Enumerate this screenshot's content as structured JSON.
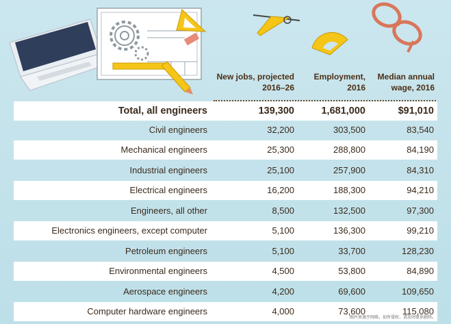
{
  "columns": {
    "new_jobs": {
      "line1": "New jobs, projected",
      "line2": "2016–26"
    },
    "employment": {
      "line1": "Employment,",
      "line2": "2016"
    },
    "wage": {
      "line1": "Median annual",
      "line2": "wage, 2016"
    }
  },
  "total": {
    "label": "Total, all engineers",
    "new_jobs": "139,300",
    "employment": "1,681,000",
    "wage": "$91,010"
  },
  "rows": [
    {
      "label": "Civil engineers",
      "new_jobs": "32,200",
      "employment": "303,500",
      "wage": "83,540"
    },
    {
      "label": "Mechanical engineers",
      "new_jobs": "25,300",
      "employment": "288,800",
      "wage": "84,190"
    },
    {
      "label": "Industrial engineers",
      "new_jobs": "25,100",
      "employment": "257,900",
      "wage": "84,310"
    },
    {
      "label": "Electrical engineers",
      "new_jobs": "16,200",
      "employment": "188,300",
      "wage": "94,210"
    },
    {
      "label": "Engineers, all other",
      "new_jobs": "8,500",
      "employment": "132,500",
      "wage": "97,300"
    },
    {
      "label": "Electronics engineers, except computer",
      "new_jobs": "5,100",
      "employment": "136,300",
      "wage": "99,210"
    },
    {
      "label": "Petroleum engineers",
      "new_jobs": "5,100",
      "employment": "33,700",
      "wage": "128,230"
    },
    {
      "label": "Environmental engineers",
      "new_jobs": "4,500",
      "employment": "53,800",
      "wage": "84,890"
    },
    {
      "label": "Aerospace engineers",
      "new_jobs": "4,200",
      "employment": "69,600",
      "wage": "109,650"
    },
    {
      "label": "Computer hardware engineers",
      "new_jobs": "4,000",
      "employment": "73,600",
      "wage": "115,080"
    }
  ],
  "chart_data": {
    "type": "table",
    "columns": [
      "New jobs, projected 2016–26",
      "Employment, 2016",
      "Median annual wage, 2016"
    ],
    "rows": [
      {
        "occupation": "Total, all engineers",
        "new_jobs": 139300,
        "employment": 1681000,
        "median_wage": 91010
      },
      {
        "occupation": "Civil engineers",
        "new_jobs": 32200,
        "employment": 303500,
        "median_wage": 83540
      },
      {
        "occupation": "Mechanical engineers",
        "new_jobs": 25300,
        "employment": 288800,
        "median_wage": 84190
      },
      {
        "occupation": "Industrial engineers",
        "new_jobs": 25100,
        "employment": 257900,
        "median_wage": 84310
      },
      {
        "occupation": "Electrical engineers",
        "new_jobs": 16200,
        "employment": 188300,
        "median_wage": 94210
      },
      {
        "occupation": "Engineers, all other",
        "new_jobs": 8500,
        "employment": 132500,
        "median_wage": 97300
      },
      {
        "occupation": "Electronics engineers, except computer",
        "new_jobs": 5100,
        "employment": 136300,
        "median_wage": 99210
      },
      {
        "occupation": "Petroleum engineers",
        "new_jobs": 5100,
        "employment": 33700,
        "median_wage": 128230
      },
      {
        "occupation": "Environmental engineers",
        "new_jobs": 4500,
        "employment": 53800,
        "median_wage": 84890
      },
      {
        "occupation": "Aerospace engineers",
        "new_jobs": 4200,
        "employment": 69600,
        "median_wage": 109650
      },
      {
        "occupation": "Computer hardware engineers",
        "new_jobs": 4000,
        "employment": 73600,
        "median_wage": 115080
      }
    ]
  },
  "colors": {
    "text": "#3a2a1c",
    "header": "#4a2e14",
    "row_white": "#ffffff",
    "background": "#c4e2ea",
    "accent_yellow": "#f5c518",
    "glasses": "#d9765a"
  },
  "icons": [
    "laptop-icon",
    "blueprint-icon",
    "gear-icon",
    "compass-icon",
    "protractor-icon",
    "set-square-icon",
    "pencil-icon",
    "eraser-icon",
    "glasses-icon"
  ],
  "footnote": "图片来源于网络，如有侵权，请及时联系删除。"
}
